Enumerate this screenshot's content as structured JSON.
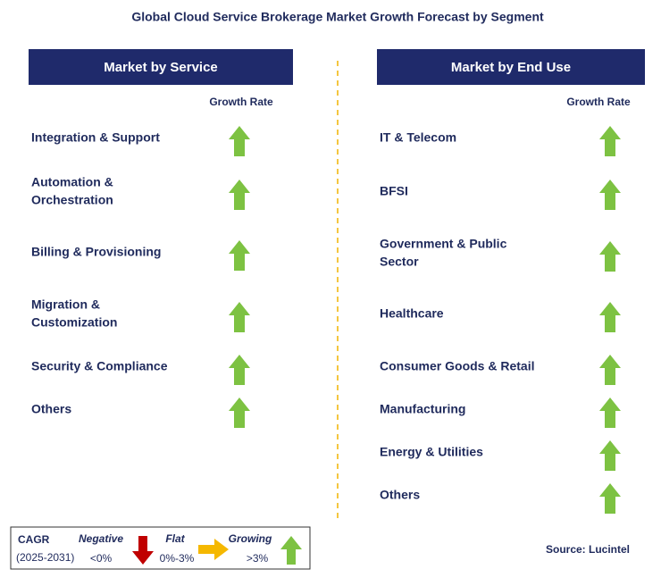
{
  "title": "Global Cloud Service Brokerage Market Growth Forecast by Segment",
  "left": {
    "header": "Market by Service",
    "column": "Growth Rate",
    "items": [
      {
        "lines": [
          "Integration & Support"
        ]
      },
      {
        "lines": [
          "Automation &",
          "Orchestration"
        ]
      },
      {
        "lines": [
          "Billing & Provisioning"
        ]
      },
      {
        "lines": [
          "Migration &",
          "Customization"
        ]
      },
      {
        "lines": [
          "Security & Compliance"
        ]
      },
      {
        "lines": [
          "Others"
        ]
      }
    ]
  },
  "right": {
    "header": "Market by End Use",
    "column": "Growth Rate",
    "items": [
      {
        "lines": [
          "IT & Telecom"
        ]
      },
      {
        "lines": [
          "BFSI"
        ]
      },
      {
        "lines": [
          "Government & Public",
          "Sector"
        ]
      },
      {
        "lines": [
          "Healthcare"
        ]
      },
      {
        "lines": [
          "Consumer Goods & Retail"
        ]
      },
      {
        "lines": [
          "Manufacturing"
        ]
      },
      {
        "lines": [
          "Energy & Utilities"
        ]
      },
      {
        "lines": [
          "Others"
        ]
      }
    ]
  },
  "legend": {
    "title": "CAGR",
    "period": "(2025-2031)",
    "negative": {
      "label": "Negative",
      "range": "<0%"
    },
    "flat": {
      "label": "Flat",
      "range": "0%-3%"
    },
    "growing": {
      "label": "Growing",
      "range": ">3%"
    }
  },
  "source": "Source: Lucintel"
}
